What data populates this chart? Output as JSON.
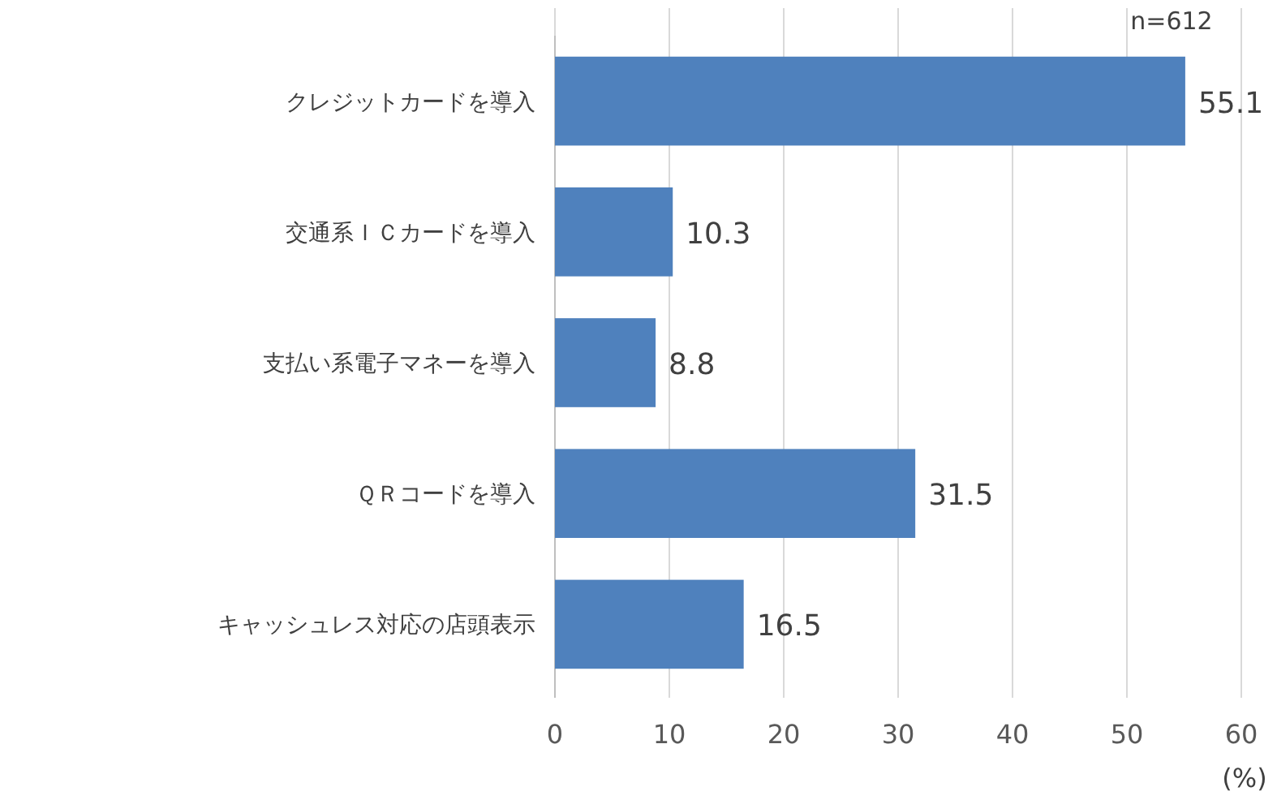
{
  "chart_data": {
    "type": "bar",
    "orientation": "horizontal",
    "categories": [
      "クレジットカードを導入",
      "交通系ＩＣカードを導入",
      "支払い系電子マネーを導入",
      "ＱＲコードを導入",
      "キャッシュレス対応の店頭表示"
    ],
    "values": [
      55.1,
      10.3,
      8.8,
      31.5,
      16.5
    ],
    "color": "#4f81bd",
    "xlim": [
      0,
      60
    ],
    "xticks": [
      0,
      10,
      20,
      30,
      40,
      50,
      60
    ],
    "grid": "x",
    "data_labels": true,
    "xlabel": "(%)",
    "annotations": [
      "n=612"
    ]
  }
}
